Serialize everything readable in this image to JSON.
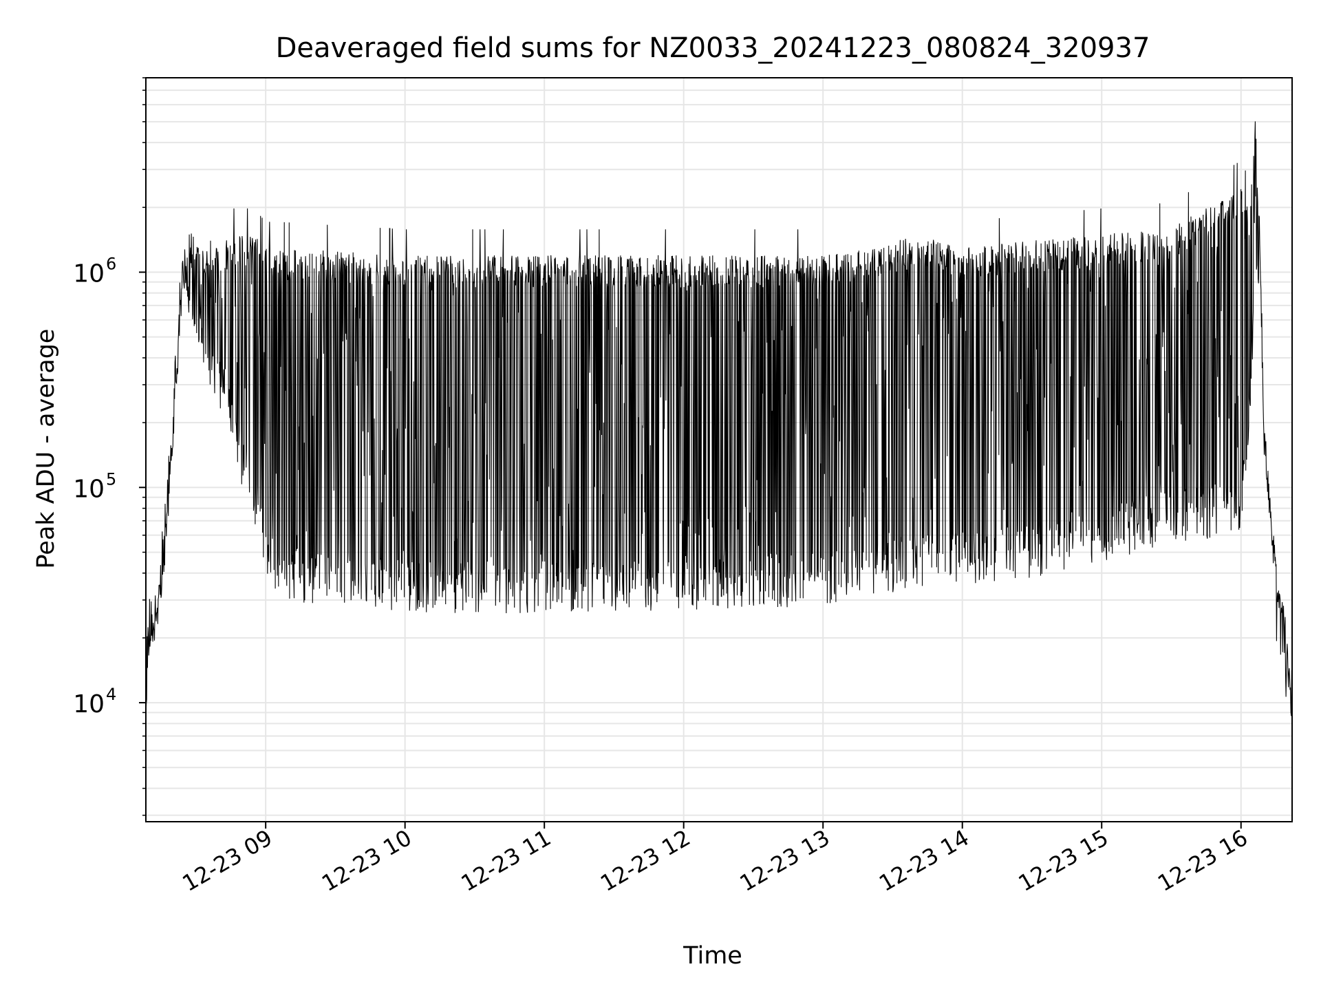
{
  "chart_data": {
    "type": "line",
    "title": "Deaveraged field sums for NZ0033_20241223_080824_320937",
    "xlabel": "Time",
    "ylabel": "Peak ADU - average",
    "x_scale": "time",
    "y_scale": "log",
    "xlim": [
      "2024-12-23T08:08:24",
      "2024-12-23T16:22:00"
    ],
    "ylim": [
      2800,
      8000000
    ],
    "x_ticks": [
      "12-23 09",
      "12-23 10",
      "12-23 11",
      "12-23 12",
      "12-23 13",
      "12-23 14",
      "12-23 15",
      "12-23 16"
    ],
    "y_ticks": [
      {
        "base": "10",
        "exp": "4",
        "value": 10000
      },
      {
        "base": "10",
        "exp": "5",
        "value": 100000
      },
      {
        "base": "10",
        "exp": "6",
        "value": 1000000
      }
    ],
    "grid": true,
    "line_color": "#000000",
    "series": [
      {
        "x": [
          "2024-12-23T08:08:24",
          "2024-12-23T08:10:00",
          "2024-12-23T08:13:00",
          "2024-12-23T08:16:00",
          "2024-12-23T08:20:00",
          "2024-12-23T08:24:00",
          "2024-12-23T08:28:00",
          "2024-12-23T08:32:00",
          "2024-12-23T08:35:00",
          "2024-12-23T08:38:00",
          "2024-12-23T08:42:00",
          "2024-12-23T08:46:00",
          "2024-12-23T08:50:00",
          "2024-12-23T08:55:00",
          "2024-12-23T09:00:00",
          "2024-12-23T09:05:00",
          "2024-12-23T10:00:00",
          "2024-12-23T11:00:00",
          "2024-12-23T12:00:00",
          "2024-12-23T13:00:00",
          "2024-12-23T13:45:00",
          "2024-12-23T14:00:00",
          "2024-12-23T14:30:00",
          "2024-12-23T15:00:00",
          "2024-12-23T15:30:00",
          "2024-12-23T16:00:00",
          "2024-12-23T16:04:00",
          "2024-12-23T16:06:00",
          "2024-12-23T16:08:00",
          "2024-12-23T16:10:00",
          "2024-12-23T16:13:00",
          "2024-12-23T16:16:00",
          "2024-12-23T16:19:00",
          "2024-12-23T16:22:00"
        ],
        "upper": [
          12000,
          20000,
          30000,
          50000,
          200000,
          1000000,
          1700000,
          1200000,
          1500000,
          1300000,
          1400000,
          1500000,
          1500000,
          1500000,
          1300000,
          1300000,
          1200000,
          1200000,
          1200000,
          1200000,
          1500000,
          1300000,
          1400000,
          1500000,
          1600000,
          2500000,
          2000000,
          5500000,
          1900000,
          200000,
          80000,
          35000,
          30000,
          10000
        ],
        "lower": [
          12000,
          18000,
          25000,
          40000,
          150000,
          800000,
          600000,
          400000,
          300000,
          250000,
          200000,
          150000,
          100000,
          70000,
          40000,
          30000,
          26000,
          26000,
          27000,
          28000,
          35000,
          35000,
          38000,
          45000,
          55000,
          60000,
          200000,
          700000,
          700000,
          150000,
          40000,
          15000,
          9000,
          8500
        ]
      }
    ]
  }
}
